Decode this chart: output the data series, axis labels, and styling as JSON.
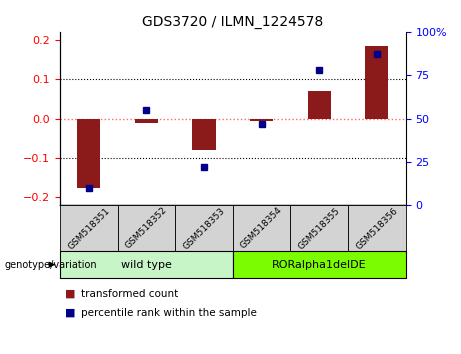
{
  "title": "GDS3720 / ILMN_1224578",
  "samples": [
    "GSM518351",
    "GSM518352",
    "GSM518353",
    "GSM518354",
    "GSM518355",
    "GSM518356"
  ],
  "transformed_count": [
    -0.175,
    -0.01,
    -0.08,
    -0.005,
    0.07,
    0.185
  ],
  "percentile_rank": [
    10,
    55,
    22,
    47,
    78,
    87
  ],
  "ylim_left": [
    -0.22,
    0.22
  ],
  "ylim_right": [
    0,
    100
  ],
  "yticks_left": [
    -0.2,
    -0.1,
    0.0,
    0.1,
    0.2
  ],
  "yticks_right": [
    0,
    25,
    50,
    75,
    100
  ],
  "bar_color": "#8B1A1A",
  "dot_color": "#00008B",
  "zero_line_color": "#FF6666",
  "dotted_line_color": "#000000",
  "background_color": "#FFFFFF",
  "legend_red_label": "transformed count",
  "legend_blue_label": "percentile rank within the sample",
  "genotype_label": "genotype/variation",
  "wildtype_color": "#c8f5c8",
  "roraplha_color": "#7CFC00",
  "sample_box_color": "#d3d3d3",
  "bar_width": 0.4
}
